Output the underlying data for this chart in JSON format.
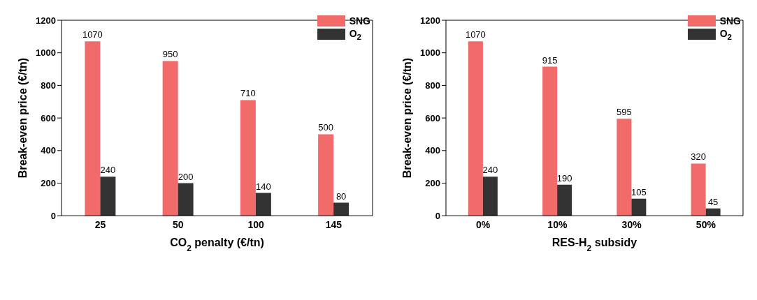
{
  "chart_data": [
    {
      "type": "bar",
      "xlabel": "CO$_{2}$ penalty (€/tn)",
      "ylabel": "Break-even price (€/tn)",
      "categories": [
        "25",
        "50",
        "100",
        "145"
      ],
      "series": [
        {
          "name": "SNG",
          "color": "#f26b6b",
          "values": [
            1070,
            950,
            710,
            500
          ]
        },
        {
          "name": "O$_{2}$",
          "color": "#333333",
          "values": [
            240,
            200,
            140,
            80
          ]
        }
      ],
      "ylim": [
        0,
        1200
      ],
      "yticks": [
        0,
        200,
        400,
        600,
        800,
        1000,
        1200
      ],
      "data_labels": true,
      "legend": "top right",
      "grid": false
    },
    {
      "type": "bar",
      "xlabel": "RES-H$_{2}$ subsidy",
      "ylabel": "Break-even price (€/tn)",
      "categories": [
        "0%",
        "10%",
        "30%",
        "50%"
      ],
      "series": [
        {
          "name": "SNG",
          "color": "#f26b6b",
          "values": [
            1070,
            915,
            595,
            320
          ]
        },
        {
          "name": "O$_{2}$",
          "color": "#333333",
          "values": [
            240,
            190,
            105,
            45
          ]
        }
      ],
      "ylim": [
        0,
        1200
      ],
      "yticks": [
        0,
        200,
        400,
        600,
        800,
        1000,
        1200
      ],
      "data_labels": true,
      "legend": "top right",
      "grid": false
    }
  ]
}
